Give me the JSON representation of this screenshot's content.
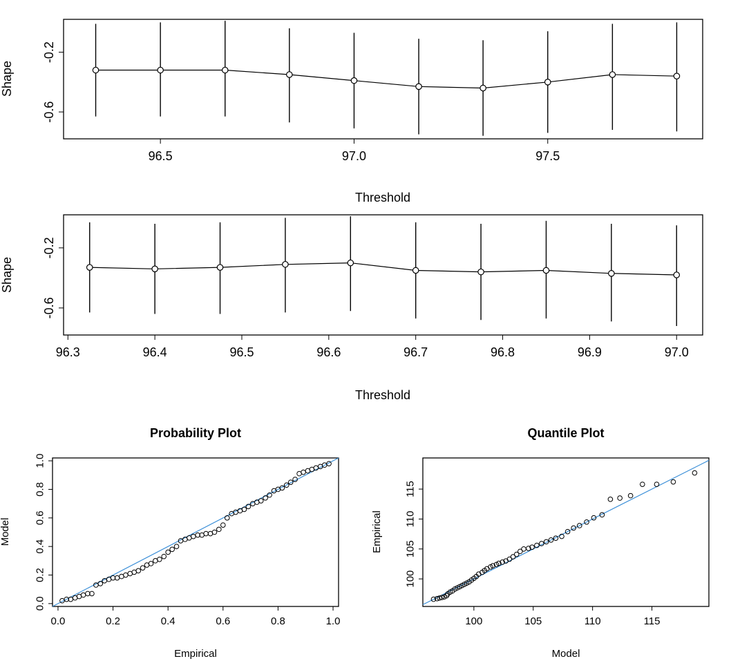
{
  "colors": {
    "ink": "#000000",
    "reference_line": "#3b8fd8",
    "background": "#ffffff"
  },
  "chart_data": [
    {
      "type": "line",
      "subtype": "threshold-stability-errorbar",
      "title": "",
      "xlabel": "Threshold",
      "ylabel": "Shape",
      "x_ticks": [
        "96.5",
        "97.0",
        "97.5"
      ],
      "y_ticks": [
        "-0.6",
        "-0.2"
      ],
      "xlim": [
        96.25,
        97.9
      ],
      "ylim": [
        -0.78,
        0.02
      ],
      "x": [
        96.333,
        96.5,
        96.667,
        96.833,
        97.0,
        97.167,
        97.333,
        97.5,
        97.667,
        97.833
      ],
      "y": [
        -0.32,
        -0.32,
        -0.32,
        -0.35,
        -0.39,
        -0.43,
        -0.44,
        -0.4,
        -0.35,
        -0.36
      ],
      "lower": [
        -0.63,
        -0.63,
        -0.63,
        -0.67,
        -0.71,
        -0.75,
        -0.76,
        -0.74,
        -0.72,
        -0.73
      ],
      "upper": [
        -0.01,
        0.0,
        0.01,
        -0.04,
        -0.07,
        -0.11,
        -0.12,
        -0.06,
        -0.01,
        0.0
      ],
      "grid": false,
      "legend": "none"
    },
    {
      "type": "line",
      "subtype": "threshold-stability-errorbar",
      "title": "",
      "xlabel": "Threshold",
      "ylabel": "Shape",
      "x_ticks": [
        "96.3",
        "96.4",
        "96.5",
        "96.6",
        "96.7",
        "96.8",
        "96.9",
        "97.0"
      ],
      "y_ticks": [
        "-0.6",
        "-0.2"
      ],
      "xlim": [
        96.295,
        97.03
      ],
      "ylim": [
        -0.78,
        0.02
      ],
      "x": [
        96.325,
        96.4,
        96.475,
        96.55,
        96.625,
        96.7,
        96.775,
        96.85,
        96.925,
        97.0
      ],
      "y": [
        -0.33,
        -0.34,
        -0.33,
        -0.31,
        -0.3,
        -0.35,
        -0.36,
        -0.35,
        -0.37,
        -0.38
      ],
      "lower": [
        -0.63,
        -0.64,
        -0.64,
        -0.63,
        -0.62,
        -0.67,
        -0.68,
        -0.67,
        -0.69,
        -0.72
      ],
      "upper": [
        -0.03,
        -0.04,
        -0.03,
        0.0,
        0.01,
        -0.03,
        -0.04,
        -0.02,
        -0.04,
        -0.05
      ],
      "grid": false,
      "legend": "none"
    },
    {
      "type": "scatter",
      "title": "Probability Plot",
      "xlabel": "Empirical",
      "ylabel": "Model",
      "x_ticks": [
        "0.0",
        "0.2",
        "0.4",
        "0.6",
        "0.8",
        "1.0"
      ],
      "y_ticks": [
        "0.0",
        "0.2",
        "0.4",
        "0.6",
        "0.8",
        "1.0"
      ],
      "xlim": [
        -0.02,
        1.02
      ],
      "ylim": [
        -0.02,
        1.02
      ],
      "reference_line": "y = x",
      "x": [
        0.015,
        0.031,
        0.046,
        0.062,
        0.077,
        0.092,
        0.108,
        0.123,
        0.138,
        0.154,
        0.169,
        0.185,
        0.2,
        0.215,
        0.231,
        0.246,
        0.262,
        0.277,
        0.292,
        0.308,
        0.323,
        0.338,
        0.354,
        0.369,
        0.385,
        0.4,
        0.415,
        0.431,
        0.446,
        0.462,
        0.477,
        0.492,
        0.508,
        0.523,
        0.538,
        0.554,
        0.569,
        0.585,
        0.6,
        0.615,
        0.631,
        0.646,
        0.662,
        0.677,
        0.692,
        0.708,
        0.723,
        0.738,
        0.754,
        0.769,
        0.785,
        0.8,
        0.815,
        0.831,
        0.846,
        0.862,
        0.877,
        0.892,
        0.908,
        0.923,
        0.938,
        0.954,
        0.969,
        0.985
      ],
      "y": [
        0.02,
        0.03,
        0.03,
        0.04,
        0.05,
        0.06,
        0.07,
        0.07,
        0.13,
        0.14,
        0.16,
        0.17,
        0.18,
        0.18,
        0.19,
        0.2,
        0.21,
        0.22,
        0.23,
        0.25,
        0.27,
        0.28,
        0.3,
        0.31,
        0.33,
        0.36,
        0.38,
        0.4,
        0.44,
        0.45,
        0.46,
        0.47,
        0.48,
        0.48,
        0.49,
        0.49,
        0.5,
        0.52,
        0.55,
        0.6,
        0.63,
        0.64,
        0.65,
        0.66,
        0.68,
        0.7,
        0.71,
        0.72,
        0.74,
        0.76,
        0.79,
        0.8,
        0.81,
        0.83,
        0.85,
        0.87,
        0.91,
        0.92,
        0.93,
        0.94,
        0.95,
        0.96,
        0.97,
        0.98
      ],
      "grid": false,
      "legend": "none"
    },
    {
      "type": "scatter",
      "title": "Quantile Plot",
      "xlabel": "Model",
      "ylabel": "Empirical",
      "x_ticks": [
        "100",
        "105",
        "110",
        "115"
      ],
      "y_ticks": [
        "100",
        "105",
        "110",
        "115"
      ],
      "xlim": [
        95.7,
        119.8
      ],
      "ylim": [
        95.4,
        120.2
      ],
      "reference_line": "y = x",
      "x": [
        96.6,
        96.9,
        97.1,
        97.3,
        97.5,
        97.7,
        97.8,
        98.0,
        98.2,
        98.4,
        98.6,
        98.8,
        99.0,
        99.2,
        99.4,
        99.6,
        99.8,
        100.0,
        100.2,
        100.4,
        100.7,
        100.9,
        101.1,
        101.4,
        101.6,
        101.9,
        102.1,
        102.4,
        102.7,
        103.0,
        103.3,
        103.6,
        103.9,
        104.2,
        104.6,
        104.9,
        105.3,
        105.7,
        106.1,
        106.5,
        106.9,
        107.4,
        107.9,
        108.4,
        108.9,
        109.5,
        110.1,
        110.8,
        111.5,
        112.3,
        113.2,
        114.2,
        115.4,
        116.8,
        118.6
      ],
      "y": [
        96.6,
        96.7,
        96.8,
        96.9,
        97.0,
        97.2,
        97.5,
        97.8,
        98.0,
        98.3,
        98.5,
        98.7,
        98.9,
        99.1,
        99.3,
        99.5,
        99.8,
        100.1,
        100.4,
        100.8,
        101.1,
        101.4,
        101.7,
        102.0,
        102.2,
        102.4,
        102.6,
        102.8,
        103.0,
        103.3,
        103.7,
        104.1,
        104.6,
        105.0,
        105.1,
        105.3,
        105.6,
        105.9,
        106.2,
        106.5,
        106.8,
        107.1,
        107.9,
        108.5,
        108.9,
        109.5,
        110.2,
        110.7,
        113.3,
        113.5,
        113.9,
        115.8,
        115.8,
        116.2,
        117.7
      ]
    }
  ]
}
